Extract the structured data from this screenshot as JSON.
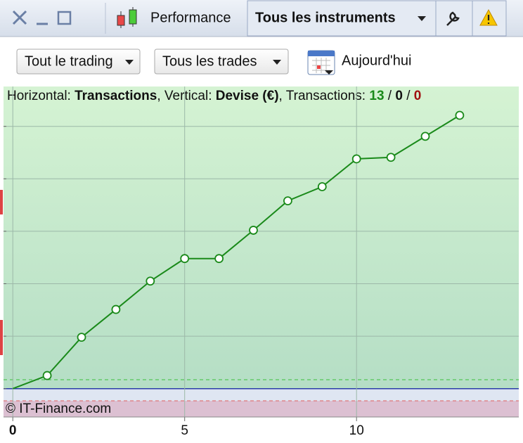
{
  "toolbar": {
    "tab_performance": "Performance",
    "tab_instruments": "Tous les instruments"
  },
  "filters": {
    "scope": "Tout le trading",
    "trades": "Tous les trades",
    "date": "Aujourd'hui"
  },
  "copyright": "© IT-Finance.com",
  "chart_data": {
    "type": "line",
    "header": {
      "h_label": "Horizontal: ",
      "h_value": "Transactions",
      "v_label": ", Vertical: ",
      "v_value": "Devise (€)",
      "t_label": ", Transactions: ",
      "total": 13,
      "sep": " / ",
      "neutral": 0,
      "losses": 0
    },
    "x": [
      0,
      1,
      2,
      3,
      4,
      5,
      6,
      7,
      8,
      9,
      10,
      11,
      12,
      13
    ],
    "values": [
      0,
      0.25,
      0.98,
      1.51,
      2.05,
      2.48,
      2.48,
      3.02,
      3.58,
      3.85,
      4.38,
      4.41,
      4.81,
      5.21
    ],
    "color": "#1a8a1a",
    "xlim": [
      -0.27,
      14.72
    ],
    "xticks": [
      0,
      5,
      10
    ],
    "ylim": [
      -0.54,
      5.76
    ],
    "yticks": [
      0,
      1,
      2,
      3,
      4,
      5
    ],
    "grid": true
  }
}
